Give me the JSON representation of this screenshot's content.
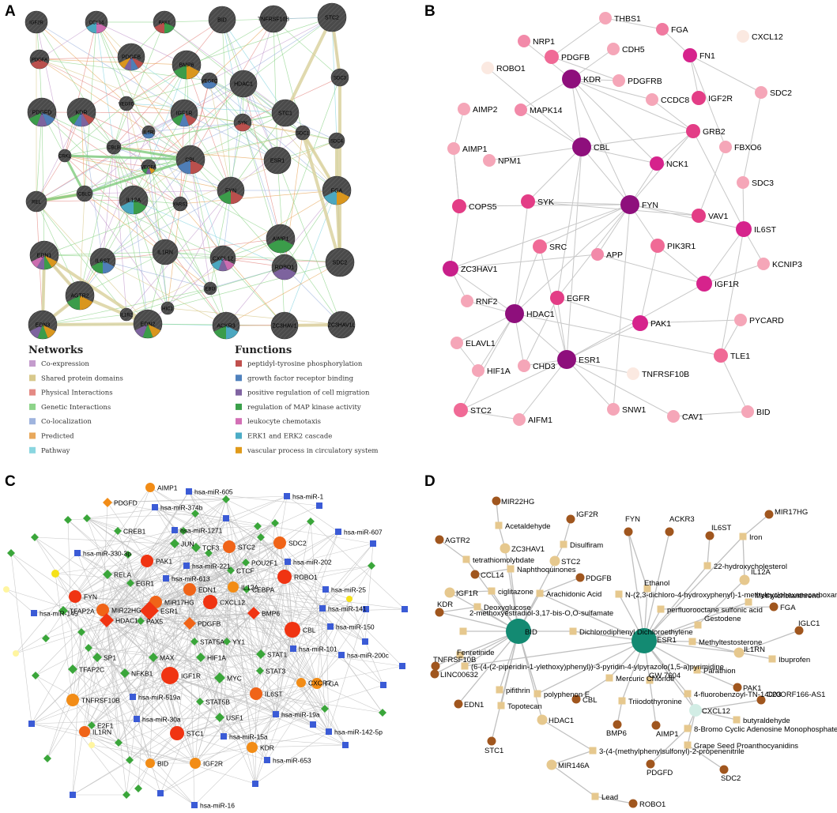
{
  "panels": {
    "a": "A",
    "b": "B",
    "c": "C",
    "d": "D"
  },
  "legend": {
    "networks_title": "Networks",
    "functions_title": "Functions",
    "networks": [
      {
        "label": "Co-expression",
        "color": "#c49ccd"
      },
      {
        "label": "Shared protein domains",
        "color": "#d8c98c"
      },
      {
        "label": "Physical Interactions",
        "color": "#e48a84"
      },
      {
        "label": "Genetic Interactions",
        "color": "#8ed48a"
      },
      {
        "label": "Co-localization",
        "color": "#9fb4de"
      },
      {
        "label": "Predicted",
        "color": "#e8a85c"
      },
      {
        "label": "Pathway",
        "color": "#8ad6e0"
      }
    ],
    "functions": [
      {
        "label": "peptidyl-tyrosine phosphorylation",
        "color": "#c0504d"
      },
      {
        "label": "growth factor receptor binding",
        "color": "#4f81bd"
      },
      {
        "label": "positive regulation of cell migration",
        "color": "#8064a2"
      },
      {
        "label": "regulation of MAP kinase activity",
        "color": "#3aa04a"
      },
      {
        "label": "leukocyte chemotaxis",
        "color": "#d36fb5"
      },
      {
        "label": "ERK1 and ERK2 cascade",
        "color": "#4bacc6"
      },
      {
        "label": "vascular process in circulatory system",
        "color": "#e09a1a"
      }
    ]
  },
  "panelA": {
    "nodes": [
      {
        "label": "IGF2R"
      },
      {
        "label": "CCL14"
      },
      {
        "label": "PAK1"
      },
      {
        "label": "BID"
      },
      {
        "label": "TNFRSF10B"
      },
      {
        "label": "STC2"
      },
      {
        "label": "PDGFA"
      },
      {
        "label": "PDGFB"
      },
      {
        "label": "BMP6"
      },
      {
        "label": "HDAC1"
      },
      {
        "label": "VEGFC"
      },
      {
        "label": "SDC3"
      },
      {
        "label": "VEGFD"
      },
      {
        "label": "STC1"
      },
      {
        "label": "PDGFD"
      },
      {
        "label": "KDR"
      },
      {
        "label": "IGF1R"
      },
      {
        "label": "IL6R"
      },
      {
        "label": "SYK"
      },
      {
        "label": "SDC1"
      },
      {
        "label": "SDC4"
      },
      {
        "label": "CRKL"
      },
      {
        "label": "CBLB"
      },
      {
        "label": "CBL"
      },
      {
        "label": "ESR1"
      },
      {
        "label": "VEGFA"
      },
      {
        "label": "REL"
      },
      {
        "label": "CBLC"
      },
      {
        "label": "IL12A"
      },
      {
        "label": "YARS1"
      },
      {
        "label": "FYN"
      },
      {
        "label": "FGA"
      },
      {
        "label": "AIMP1"
      },
      {
        "label": "EDN1"
      },
      {
        "label": "IL6ST"
      },
      {
        "label": "CXCL12"
      },
      {
        "label": "IL1RN"
      },
      {
        "label": "EBI3"
      },
      {
        "label": "ROBO1"
      },
      {
        "label": "SDC2"
      },
      {
        "label": "HIC1"
      },
      {
        "label": "AGTR2"
      },
      {
        "label": "IL1R2"
      },
      {
        "label": "EDN3"
      },
      {
        "label": "EDN2"
      },
      {
        "label": "ACKR3"
      },
      {
        "label": "ZC3HAV1"
      },
      {
        "label": "ZC3HAV1L"
      }
    ]
  },
  "panelB": {
    "nodes": [
      {
        "label": "THBS1"
      },
      {
        "label": "FGA"
      },
      {
        "label": "CXCL12"
      },
      {
        "label": "NRP1"
      },
      {
        "label": "PDGFB"
      },
      {
        "label": "CDH5"
      },
      {
        "label": "ROBO1"
      },
      {
        "label": "FN1"
      },
      {
        "label": "KDR"
      },
      {
        "label": "PDGFRB"
      },
      {
        "label": "CCDC8"
      },
      {
        "label": "SDC2"
      },
      {
        "label": "AIMP2"
      },
      {
        "label": "MAPK14"
      },
      {
        "label": "IGF2R"
      },
      {
        "label": "GRB2"
      },
      {
        "label": "CBL"
      },
      {
        "label": "AIMP1"
      },
      {
        "label": "NPM1"
      },
      {
        "label": "FBXO6"
      },
      {
        "label": "NCK1"
      },
      {
        "label": "SDC3"
      },
      {
        "label": "SYK"
      },
      {
        "label": "FYN"
      },
      {
        "label": "COPS5"
      },
      {
        "label": "VAV1"
      },
      {
        "label": "IL6ST"
      },
      {
        "label": "SRC"
      },
      {
        "label": "PIK3R1"
      },
      {
        "label": "APP"
      },
      {
        "label": "KCNIP3"
      },
      {
        "label": "ZC3HAV1"
      },
      {
        "label": "IGF1R"
      },
      {
        "label": "RNF2"
      },
      {
        "label": "EGFR"
      },
      {
        "label": "HDAC1"
      },
      {
        "label": "PAK1"
      },
      {
        "label": "PYCARD"
      },
      {
        "label": "ELAVL1"
      },
      {
        "label": "ESR1"
      },
      {
        "label": "TLE1"
      },
      {
        "label": "HIF1A"
      },
      {
        "label": "CHD3"
      },
      {
        "label": "TNFRSF10B"
      },
      {
        "label": "STC2"
      },
      {
        "label": "AIFM1"
      },
      {
        "label": "SNW1"
      },
      {
        "label": "CAV1"
      },
      {
        "label": "BID"
      }
    ]
  },
  "panelC": {
    "nodes": [
      {
        "label": "AIMP1"
      },
      {
        "label": "hsa-miR-605"
      },
      {
        "label": "PDGFD"
      },
      {
        "label": "hsa-miR-374b"
      },
      {
        "label": "hsa-miR-1"
      },
      {
        "label": "CREB1"
      },
      {
        "label": "hsa-miR-1271"
      },
      {
        "label": "hsa-miR-607"
      },
      {
        "label": "JUN"
      },
      {
        "label": "TCF3"
      },
      {
        "label": "STC2"
      },
      {
        "label": "SDC2"
      },
      {
        "label": "hsa-miR-330-3p"
      },
      {
        "label": "hsa-miR-221"
      },
      {
        "label": "POU2F1"
      },
      {
        "label": "hsa-miR-202"
      },
      {
        "label": "PAK1"
      },
      {
        "label": "CTCF"
      },
      {
        "label": "RELA"
      },
      {
        "label": "hsa-miR-613"
      },
      {
        "label": "EGR1"
      },
      {
        "label": "EDN1"
      },
      {
        "label": "IL12A"
      },
      {
        "label": "CEBPA"
      },
      {
        "label": "ROBO1"
      },
      {
        "label": "hsa-miR-25"
      },
      {
        "label": "FYN"
      },
      {
        "label": "MIR22HG"
      },
      {
        "label": "MIR17HG"
      },
      {
        "label": "CXCL12"
      },
      {
        "label": "hsa-miR-141"
      },
      {
        "label": "hsa-miR-145"
      },
      {
        "label": "TFAP2A"
      },
      {
        "label": "HDAC1"
      },
      {
        "label": "PAX5"
      },
      {
        "label": "ESR1"
      },
      {
        "label": "PDGFB"
      },
      {
        "label": "BMP6"
      },
      {
        "label": "CBL"
      },
      {
        "label": "hsa-miR-150"
      },
      {
        "label": "STAT5A"
      },
      {
        "label": "YY1"
      },
      {
        "label": "SP1"
      },
      {
        "label": "MAX"
      },
      {
        "label": "hsa-miR-101"
      },
      {
        "label": "hsa-miR-200c"
      },
      {
        "label": "TFAP2C"
      },
      {
        "label": "NFKB1"
      },
      {
        "label": "HIF1A"
      },
      {
        "label": "STAT1"
      },
      {
        "label": "IGF1R"
      },
      {
        "label": "MYC"
      },
      {
        "label": "STAT3"
      },
      {
        "label": "CXCR7"
      },
      {
        "label": "FGA"
      },
      {
        "label": "hsa-miR-519a"
      },
      {
        "label": "IL6ST"
      },
      {
        "label": "TNFRSF10B"
      },
      {
        "label": "STAT5B"
      },
      {
        "label": "hsa-miR-30a"
      },
      {
        "label": "hsa-miR-19a"
      },
      {
        "label": "E2F1"
      },
      {
        "label": "USF1"
      },
      {
        "label": "hsa-miR-142-5p"
      },
      {
        "label": "IL1RN"
      },
      {
        "label": "STC1"
      },
      {
        "label": "hsa-miR-15a"
      },
      {
        "label": "KDR"
      },
      {
        "label": "hsa-miR-653"
      },
      {
        "label": "BID"
      },
      {
        "label": "IGF2R"
      },
      {
        "label": "hsa-miR-16"
      }
    ]
  },
  "panelD": {
    "nodes": [
      {
        "label": "MIR22HG"
      },
      {
        "label": "Acetaldehyde"
      },
      {
        "label": "IGF2R"
      },
      {
        "label": "FYN"
      },
      {
        "label": "ACKR3"
      },
      {
        "label": "MIR17HG"
      },
      {
        "label": "AGTR2"
      },
      {
        "label": "ZC3HAV1"
      },
      {
        "label": "Disulfiram"
      },
      {
        "label": "IL6ST"
      },
      {
        "label": "Iron"
      },
      {
        "label": "tetrathiomolybdate"
      },
      {
        "label": "STC2"
      },
      {
        "label": "22-hydroxycholesterol"
      },
      {
        "label": "CCL14"
      },
      {
        "label": "Naphthoquinones"
      },
      {
        "label": "PDGFB"
      },
      {
        "label": "Ethanol"
      },
      {
        "label": "IL12A"
      },
      {
        "label": "IGF1R"
      },
      {
        "label": "ciglitazone"
      },
      {
        "label": "Arachidonic Acid"
      },
      {
        "label": "N-(2,3-dichloro-4-hydroxyphenyl)-1-methylcyclohexanecarboxamide"
      },
      {
        "label": "Methylcholanthrene"
      },
      {
        "label": "KDR"
      },
      {
        "label": "Deoxyglucose"
      },
      {
        "label": "perfluorooctane sulfonic acid"
      },
      {
        "label": "FGA"
      },
      {
        "label": "2-methoxyestradiol-3,17-bis-O,O-sulfamate"
      },
      {
        "label": "Gestodene"
      },
      {
        "label": "BID"
      },
      {
        "label": "Dichlorodiphenyl Dichloroethylene"
      },
      {
        "label": "ESR1"
      },
      {
        "label": "IGLC1"
      },
      {
        "label": "Fenretinide"
      },
      {
        "label": "Methyltestosterone"
      },
      {
        "label": "TNFRSF10B"
      },
      {
        "label": "IL1RN"
      },
      {
        "label": "(6-(4-(2-piperidin-1-ylethoxy)phenyl))-3-pyridin-4-ylpyrazolo(1,5-a)pyrimidine"
      },
      {
        "label": "Ibuprofen"
      },
      {
        "label": "Parathion"
      },
      {
        "label": "LINC00632"
      },
      {
        "label": "Mercuric Chloride"
      },
      {
        "label": "PAK1"
      },
      {
        "label": "pifithrin"
      },
      {
        "label": "polyphenon E"
      },
      {
        "label": "GW 7604"
      },
      {
        "label": "4-fluorobenzoyl-TN-14003"
      },
      {
        "label": "EDN1"
      },
      {
        "label": "CBL"
      },
      {
        "label": "Triiodothyronine"
      },
      {
        "label": "CXCL12"
      },
      {
        "label": "C20ORF166-AS1"
      },
      {
        "label": "Topotecan"
      },
      {
        "label": "butyraldehyde"
      },
      {
        "label": "HDAC1"
      },
      {
        "label": "BMP6"
      },
      {
        "label": "AIMP1"
      },
      {
        "label": "8-Bromo Cyclic Adenosine Monophosphate"
      },
      {
        "label": "STC1"
      },
      {
        "label": "Grape Seed Proanthocyanidins"
      },
      {
        "label": "3-(4-(methylphenylsulfonyl)-2-propenenitrile"
      },
      {
        "label": "PDGFD"
      },
      {
        "label": "SDC2"
      },
      {
        "label": "MIR146A"
      },
      {
        "label": "Lead"
      },
      {
        "label": "ROBO1"
      }
    ]
  }
}
